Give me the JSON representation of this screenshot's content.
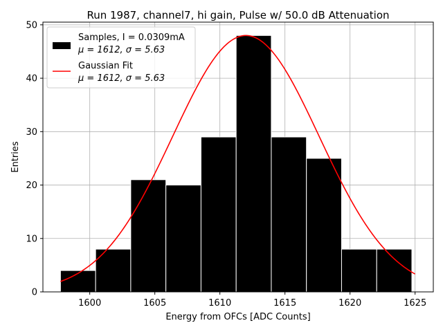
{
  "chart_data": {
    "type": "bar",
    "title": "Run 1987, channel7, hi gain, Pulse w/ 50.0 dB Attenuation",
    "xlabel": "Energy from OFCs [ADC Counts]",
    "ylabel": "Entries",
    "xlim": [
      1596.4,
      1626.4
    ],
    "ylim": [
      0,
      50.5
    ],
    "xticks": [
      1600,
      1605,
      1610,
      1615,
      1620,
      1625
    ],
    "yticks": [
      0,
      10,
      20,
      30,
      40,
      50
    ],
    "grid": true,
    "legend_position": "top-left",
    "bin_edges": [
      1597.75,
      1600.45,
      1603.15,
      1605.85,
      1608.55,
      1611.25,
      1613.95,
      1616.65,
      1619.35,
      1622.05,
      1624.75
    ],
    "values": [
      4,
      8,
      21,
      20,
      29,
      48,
      29,
      25,
      8,
      8
    ],
    "bar_color": "#000000",
    "bar_edge_color": "#ffffff",
    "fit_color": "#ff0000",
    "fit": {
      "mu": 1612,
      "sigma": 5.63,
      "amplitude": 48,
      "x_range": [
        1597.75,
        1625
      ]
    },
    "legend": [
      {
        "label_line1": "Samples, I = 0.0309mA",
        "label_line2": "μ = 1612, σ = 5.63"
      },
      {
        "label_line1": "Gaussian Fit",
        "label_line2": "μ = 1612, σ = 5.63"
      }
    ]
  }
}
